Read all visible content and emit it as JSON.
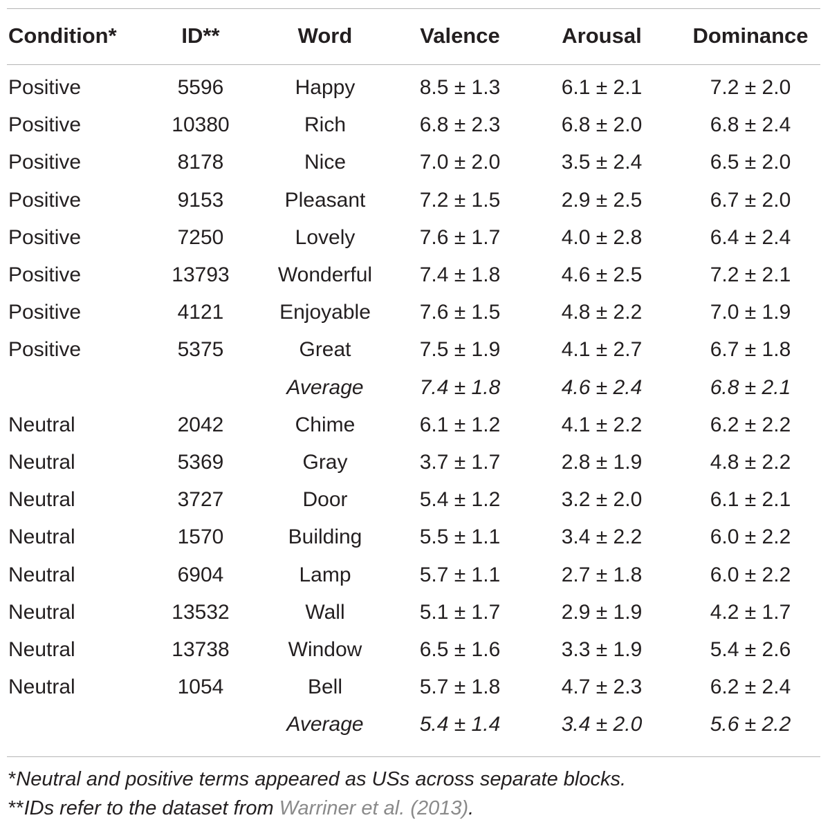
{
  "table": {
    "headers": [
      "Condition*",
      "ID**",
      "Word",
      "Valence",
      "Arousal",
      "Dominance"
    ],
    "rows": [
      {
        "condition": "Positive",
        "id": "5596",
        "word": "Happy",
        "valence": "8.5 ± 1.3",
        "arousal": "6.1 ± 2.1",
        "dominance": "7.2 ± 2.0",
        "average": false
      },
      {
        "condition": "Positive",
        "id": "10380",
        "word": "Rich",
        "valence": "6.8  ± 2.3",
        "arousal": "6.8 ± 2.0",
        "dominance": "6.8 ± 2.4",
        "average": false
      },
      {
        "condition": "Positive",
        "id": "8178",
        "word": "Nice",
        "valence": "7.0 ± 2.0",
        "arousal": "3.5 ± 2.4",
        "dominance": "6.5 ± 2.0",
        "average": false
      },
      {
        "condition": "Positive",
        "id": "9153",
        "word": "Pleasant",
        "valence": "7.2 ± 1.5",
        "arousal": "2.9 ± 2.5",
        "dominance": "6.7 ± 2.0",
        "average": false
      },
      {
        "condition": "Positive",
        "id": "7250",
        "word": "Lovely",
        "valence": "7.6 ± 1.7",
        "arousal": "4.0 ± 2.8",
        "dominance": "6.4 ± 2.4",
        "average": false
      },
      {
        "condition": "Positive",
        "id": "13793",
        "word": "Wonderful",
        "valence": "7.4 ± 1.8",
        "arousal": "4.6 ± 2.5",
        "dominance": "7.2 ± 2.1",
        "average": false
      },
      {
        "condition": "Positive",
        "id": "4121",
        "word": "Enjoyable",
        "valence": "7.6 ± 1.5",
        "arousal": "4.8 ± 2.2",
        "dominance": "7.0 ± 1.9",
        "average": false
      },
      {
        "condition": "Positive",
        "id": "5375",
        "word": "Great",
        "valence": "7.5 ± 1.9",
        "arousal": "4.1 ± 2.7",
        "dominance": "6.7 ± 1.8",
        "average": false
      },
      {
        "condition": "",
        "id": "",
        "word": "Average",
        "valence": "7.4 ± 1.8",
        "arousal": "4.6 ± 2.4",
        "dominance": "6.8 ± 2.1",
        "average": true
      },
      {
        "condition": "Neutral",
        "id": "2042",
        "word": "Chime",
        "valence": "6.1 ± 1.2",
        "arousal": "4.1 ± 2.2",
        "dominance": "6.2 ± 2.2",
        "average": false
      },
      {
        "condition": "Neutral",
        "id": "5369",
        "word": "Gray",
        "valence": "3.7 ± 1.7",
        "arousal": "2.8 ± 1.9",
        "dominance": "4.8 ± 2.2",
        "average": false
      },
      {
        "condition": "Neutral",
        "id": "3727",
        "word": "Door",
        "valence": "5.4 ± 1.2",
        "arousal": "3.2 ± 2.0",
        "dominance": "6.1 ± 2.1",
        "average": false
      },
      {
        "condition": "Neutral",
        "id": "1570",
        "word": "Building",
        "valence": "5.5 ± 1.1",
        "arousal": "3.4 ± 2.2",
        "dominance": "6.0 ± 2.2",
        "average": false
      },
      {
        "condition": "Neutral",
        "id": "6904",
        "word": "Lamp",
        "valence": "5.7 ± 1.1",
        "arousal": "2.7 ± 1.8",
        "dominance": "6.0 ± 2.2",
        "average": false
      },
      {
        "condition": "Neutral",
        "id": "13532",
        "word": "Wall",
        "valence": "5.1 ± 1.7",
        "arousal": "2.9 ± 1.9",
        "dominance": "4.2 ± 1.7",
        "average": false
      },
      {
        "condition": "Neutral",
        "id": "13738",
        "word": "Window",
        "valence": "6.5 ± 1.6",
        "arousal": "3.3 ± 1.9",
        "dominance": "5.4 ± 2.6",
        "average": false
      },
      {
        "condition": "Neutral",
        "id": "1054",
        "word": "Bell",
        "valence": "5.7 ± 1.8",
        "arousal": "4.7 ± 2.3",
        "dominance": "6.2 ± 2.4",
        "average": false
      },
      {
        "condition": "",
        "id": "",
        "word": "Average",
        "valence": "5.4 ± 1.4",
        "arousal": "3.4 ± 2.0",
        "dominance": "5.6 ± 2.2",
        "average": true
      }
    ]
  },
  "footnotes": {
    "note1_mark": "*",
    "note1_text": "Neutral and positive terms appeared as USs across separate blocks.",
    "note2_mark": "**",
    "note2_text": "IDs refer to the dataset from ",
    "note2_link": "Warriner et al. (2013)",
    "note2_end": "."
  },
  "colors": {
    "text": "#231f20",
    "rule": "#b5b5b5",
    "link": "#8a8a8a"
  }
}
